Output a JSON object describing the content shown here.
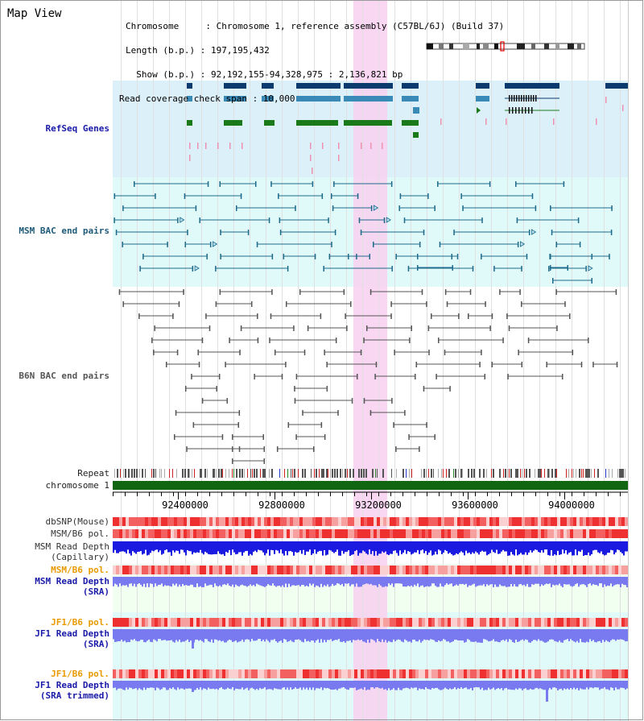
{
  "window": {
    "title": "Map View"
  },
  "header": {
    "chromosome": "Chromosome     : Chromosome 1, reference assembly (C57BL/6J) (Build 37)",
    "length": "Length (b.p.) : 197,195,432",
    "show": "  Show (b.p.) : 92,192,155-94,328,975 : 2,136,821 bp",
    "coverage": "Read coverage check span : 10,000"
  },
  "tracks": {
    "refseq": "RefSeq Genes",
    "msm_bac": "MSM BAC end pairs",
    "b6n_bac": "B6N BAC end pairs",
    "repeat": "Repeat",
    "chromosome": "chromosome 1",
    "dbsnp": "dbSNP(Mouse)",
    "msm_b6_pol": "MSM/B6 pol.",
    "msm_depth_cap_1": "MSM Read Depth",
    "msm_depth_cap_2": "(Capillary)",
    "msm_b6_pol_2": "MSM/B6 pol.",
    "msm_depth_sra_1": "MSM Read Depth",
    "msm_depth_sra_2": "(SRA)",
    "jf1_b6_pol": "JF1/B6 pol.",
    "jf1_depth_sra_1": "JF1 Read Depth",
    "jf1_depth_sra_2": "(SRA)",
    "jf1_b6_pol_2": "JF1/B6 pol.",
    "jf1_depth_trim_1": "JF1 Read Depth",
    "jf1_depth_trim_2": "(SRA trimmed)"
  },
  "axis": {
    "ticks": [
      "92400000",
      "92800000",
      "93200000",
      "93600000",
      "94000000"
    ]
  },
  "colors": {
    "refseq_bg": "#dcf0fa",
    "msm_bg": "#e0fafa",
    "light_bg": "#f0fff0",
    "highlight": "#f8d0f0",
    "gene_dark": "#0a3a6e",
    "gene_mid": "#3a8ab8",
    "gene_green": "#1a7a1a",
    "msm_pair": "#1e6a8a",
    "b6n_pair": "#555555",
    "chrom_bar": "#116611",
    "depth_dark": "#1a1ae0",
    "depth_light": "#7a7af0"
  }
}
